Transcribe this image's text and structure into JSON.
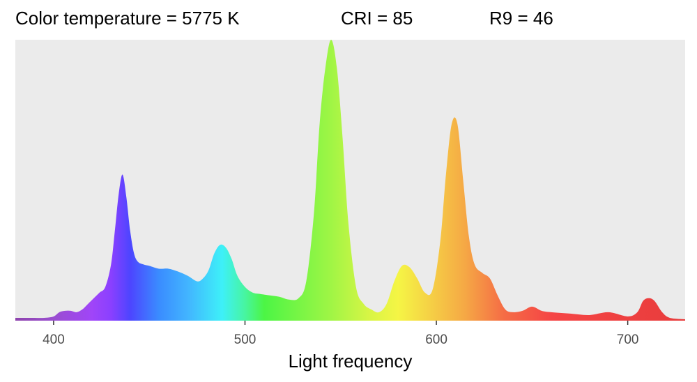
{
  "header": {
    "color_temperature": "Color temperature = 5775 K",
    "cri": "CRI = 85",
    "r9": "R9 = 46"
  },
  "chart_data": {
    "type": "area",
    "title": "",
    "xlabel": "Light frequency",
    "ylabel": "",
    "xlim": [
      380,
      730
    ],
    "ylim": [
      0,
      1.0
    ],
    "x_ticks": [
      400,
      500,
      600,
      700
    ],
    "grid": false,
    "legend": "none",
    "panel_background": "#ebebeb",
    "x": [
      380,
      385,
      390,
      395,
      400,
      403,
      406,
      409,
      412,
      415,
      418,
      421,
      424,
      427,
      430,
      432,
      434,
      436,
      438,
      440,
      442,
      444,
      447,
      450,
      455,
      460,
      465,
      470,
      475,
      478,
      481,
      484,
      487,
      490,
      493,
      496,
      500,
      504,
      508,
      513,
      518,
      523,
      528,
      532,
      536,
      539,
      542,
      545,
      548,
      551,
      554,
      558,
      562,
      566,
      570,
      574,
      578,
      582,
      586,
      590,
      594,
      598,
      602,
      605,
      608,
      611,
      614,
      617,
      620,
      624,
      628,
      632,
      636,
      640,
      645,
      650,
      655,
      660,
      670,
      680,
      690,
      700,
      705,
      708,
      711,
      714,
      718,
      722,
      730
    ],
    "series": [
      {
        "values": [
          0.01,
          0.01,
          0.01,
          0.01,
          0.015,
          0.03,
          0.035,
          0.035,
          0.03,
          0.04,
          0.06,
          0.08,
          0.1,
          0.12,
          0.2,
          0.32,
          0.45,
          0.52,
          0.44,
          0.32,
          0.24,
          0.21,
          0.2,
          0.195,
          0.185,
          0.185,
          0.175,
          0.16,
          0.14,
          0.15,
          0.18,
          0.24,
          0.27,
          0.26,
          0.22,
          0.16,
          0.12,
          0.1,
          0.095,
          0.09,
          0.085,
          0.075,
          0.08,
          0.14,
          0.38,
          0.7,
          0.9,
          1.0,
          0.9,
          0.65,
          0.35,
          0.12,
          0.06,
          0.04,
          0.03,
          0.06,
          0.14,
          0.195,
          0.19,
          0.15,
          0.1,
          0.11,
          0.28,
          0.52,
          0.7,
          0.7,
          0.5,
          0.3,
          0.2,
          0.17,
          0.15,
          0.09,
          0.04,
          0.03,
          0.035,
          0.05,
          0.035,
          0.03,
          0.025,
          0.02,
          0.03,
          0.015,
          0.03,
          0.07,
          0.08,
          0.07,
          0.03,
          0.01,
          0.005
        ]
      }
    ],
    "fill_stops": [
      {
        "x": 380,
        "color": "#8e44ad"
      },
      {
        "x": 400,
        "color": "#9a4ed0"
      },
      {
        "x": 420,
        "color": "#a045f8"
      },
      {
        "x": 430,
        "color": "#8a40ff"
      },
      {
        "x": 440,
        "color": "#4d45ff"
      },
      {
        "x": 455,
        "color": "#3a8cff"
      },
      {
        "x": 470,
        "color": "#42b4ff"
      },
      {
        "x": 488,
        "color": "#3ef0f8"
      },
      {
        "x": 500,
        "color": "#47f5a0"
      },
      {
        "x": 510,
        "color": "#4cf545"
      },
      {
        "x": 545,
        "color": "#a0f545"
      },
      {
        "x": 565,
        "color": "#d8f545"
      },
      {
        "x": 580,
        "color": "#f5f545"
      },
      {
        "x": 600,
        "color": "#f5c945"
      },
      {
        "x": 615,
        "color": "#f5a845"
      },
      {
        "x": 635,
        "color": "#f56d45"
      },
      {
        "x": 660,
        "color": "#f54545"
      },
      {
        "x": 730,
        "color": "#e83c3c"
      }
    ]
  }
}
